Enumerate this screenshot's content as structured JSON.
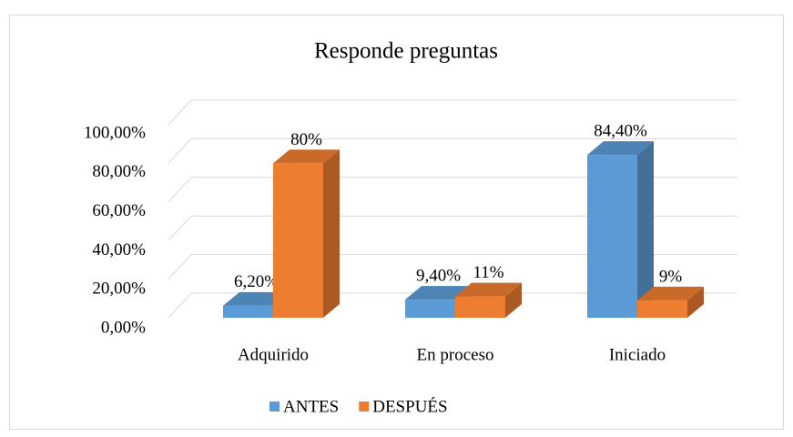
{
  "chart_data": {
    "type": "bar3d",
    "title": "Responde preguntas",
    "categories": [
      "Adquirido",
      "En proceso",
      "Iniciado"
    ],
    "series": [
      {
        "name": "ANTES",
        "color": "#5b9bd5",
        "values": [
          6.2,
          9.4,
          84.4
        ],
        "value_labels": [
          "6,20%",
          "9,40%",
          "84,40%"
        ]
      },
      {
        "name": "DESPUÉS",
        "color": "#ed7d31",
        "values": [
          80,
          11,
          9
        ],
        "value_labels": [
          "80%",
          "11%",
          "9%"
        ]
      }
    ],
    "ylim": [
      0,
      100
    ],
    "yticks": [
      {
        "value": 0,
        "label": "0,00%"
      },
      {
        "value": 20,
        "label": "20,00%"
      },
      {
        "value": 40,
        "label": "40,00%"
      },
      {
        "value": 60,
        "label": "60,00%"
      },
      {
        "value": 80,
        "label": "80,00%"
      },
      {
        "value": 100,
        "label": "100,00%"
      }
    ],
    "grid": true,
    "legend": "bottom"
  }
}
